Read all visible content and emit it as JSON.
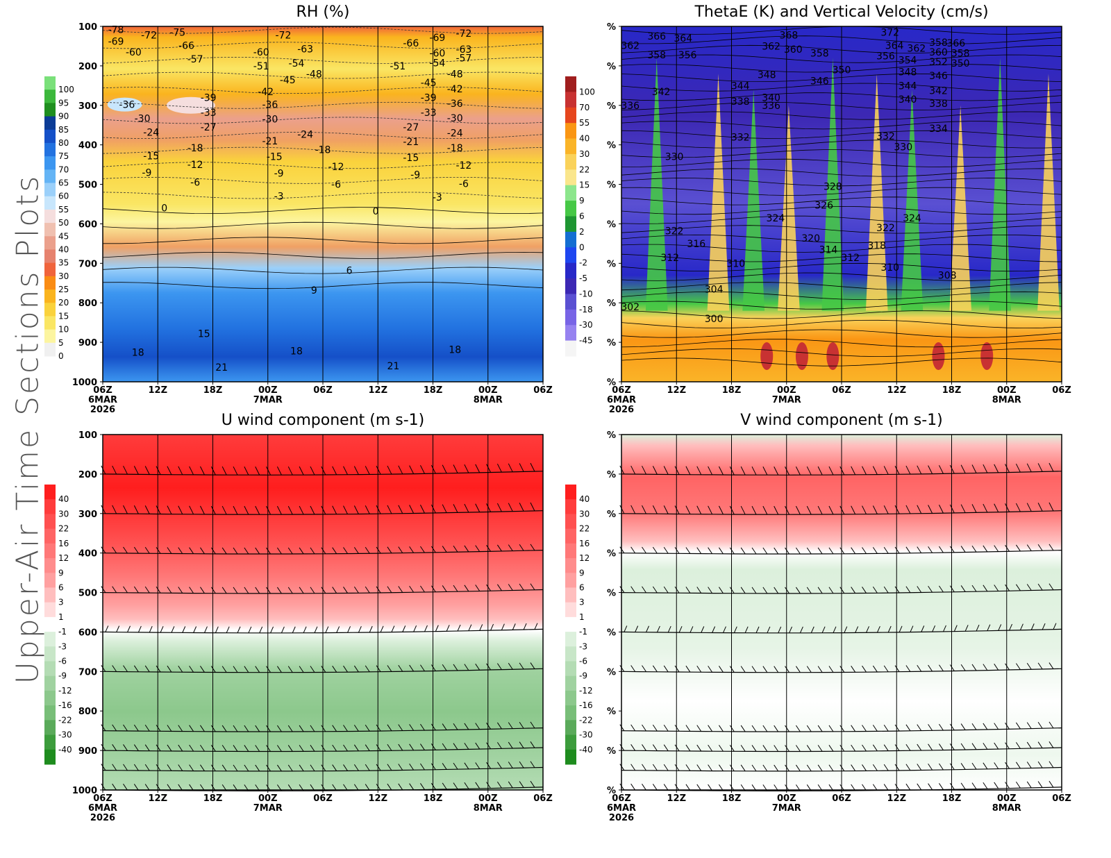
{
  "side_title": "Upper-Air Time Sections Plots",
  "x_ticks": [
    "06Z",
    "12Z",
    "18Z",
    "00Z",
    "06Z",
    "12Z",
    "18Z",
    "00Z",
    "06Z"
  ],
  "x_sub": {
    "0": [
      "6MAR",
      "2026"
    ],
    "3": [
      "7MAR"
    ],
    "7": [
      "8MAR"
    ]
  },
  "chart_data": [
    {
      "id": "rh",
      "type": "heatmap",
      "title": "RH (%)",
      "y_ticks": [
        "100",
        "200",
        "300",
        "400",
        "500",
        "600",
        "700",
        "800",
        "900",
        "1000"
      ],
      "ylim": [
        100,
        1000
      ],
      "colorbar": {
        "labels": [
          "100",
          "95",
          "90",
          "85",
          "80",
          "75",
          "70",
          "65",
          "60",
          "55",
          "50",
          "45",
          "40",
          "35",
          "30",
          "25",
          "20",
          "15",
          "10",
          "5",
          "0"
        ],
        "colors": [
          "#7ae07a",
          "#3cb83c",
          "#1f8f1f",
          "#0c3c96",
          "#1550c8",
          "#2272e0",
          "#3c96f0",
          "#64b4f5",
          "#9bd0fa",
          "#c8e6fc",
          "#f5dede",
          "#f0c0b0",
          "#eba08c",
          "#e6826e",
          "#f0643c",
          "#fa8c14",
          "#fab41e",
          "#fad23c",
          "#fae664",
          "#fcf5a0",
          "#f0f0f0"
        ]
      },
      "contour_labels": [
        {
          "t": "-78",
          "x": 0.03,
          "p": 108
        },
        {
          "t": "-69",
          "x": 0.03,
          "p": 138
        },
        {
          "t": "-72",
          "x": 0.105,
          "p": 122
        },
        {
          "t": "-75",
          "x": 0.17,
          "p": 115
        },
        {
          "t": "-60",
          "x": 0.07,
          "p": 165
        },
        {
          "t": "-66",
          "x": 0.19,
          "p": 148
        },
        {
          "t": "-57",
          "x": 0.21,
          "p": 183
        },
        {
          "t": "-72",
          "x": 0.41,
          "p": 122
        },
        {
          "t": "-63",
          "x": 0.46,
          "p": 157
        },
        {
          "t": "-60",
          "x": 0.36,
          "p": 165
        },
        {
          "t": "-54",
          "x": 0.44,
          "p": 193
        },
        {
          "t": "-51",
          "x": 0.36,
          "p": 200
        },
        {
          "t": "-48",
          "x": 0.48,
          "p": 220
        },
        {
          "t": "-45",
          "x": 0.42,
          "p": 235
        },
        {
          "t": "-42",
          "x": 0.37,
          "p": 265
        },
        {
          "t": "-39",
          "x": 0.24,
          "p": 280
        },
        {
          "t": "-36",
          "x": 0.055,
          "p": 298
        },
        {
          "t": "-36",
          "x": 0.38,
          "p": 298
        },
        {
          "t": "-33",
          "x": 0.24,
          "p": 318
        },
        {
          "t": "-30",
          "x": 0.09,
          "p": 333
        },
        {
          "t": "-30",
          "x": 0.38,
          "p": 335
        },
        {
          "t": "-27",
          "x": 0.24,
          "p": 355
        },
        {
          "t": "-24",
          "x": 0.11,
          "p": 368
        },
        {
          "t": "-24",
          "x": 0.46,
          "p": 373
        },
        {
          "t": "-21",
          "x": 0.38,
          "p": 390
        },
        {
          "t": "-18",
          "x": 0.21,
          "p": 408
        },
        {
          "t": "-18",
          "x": 0.5,
          "p": 412
        },
        {
          "t": "-15",
          "x": 0.11,
          "p": 428
        },
        {
          "t": "-15",
          "x": 0.39,
          "p": 430
        },
        {
          "t": "-12",
          "x": 0.21,
          "p": 450
        },
        {
          "t": "-12",
          "x": 0.53,
          "p": 455
        },
        {
          "t": "-9",
          "x": 0.1,
          "p": 470
        },
        {
          "t": "-9",
          "x": 0.4,
          "p": 472
        },
        {
          "t": "-6",
          "x": 0.21,
          "p": 495
        },
        {
          "t": "-6",
          "x": 0.53,
          "p": 500
        },
        {
          "t": "-3",
          "x": 0.4,
          "p": 530
        },
        {
          "t": "0",
          "x": 0.14,
          "p": 560
        },
        {
          "t": "0",
          "x": 0.62,
          "p": 568
        },
        {
          "t": "-66",
          "x": 0.7,
          "p": 142
        },
        {
          "t": "-69",
          "x": 0.76,
          "p": 128
        },
        {
          "t": "-72",
          "x": 0.82,
          "p": 118
        },
        {
          "t": "-60",
          "x": 0.76,
          "p": 168
        },
        {
          "t": "-63",
          "x": 0.82,
          "p": 158
        },
        {
          "t": "-57",
          "x": 0.82,
          "p": 180
        },
        {
          "t": "-54",
          "x": 0.76,
          "p": 192
        },
        {
          "t": "-51",
          "x": 0.67,
          "p": 200
        },
        {
          "t": "-48",
          "x": 0.8,
          "p": 220
        },
        {
          "t": "-45",
          "x": 0.74,
          "p": 242
        },
        {
          "t": "-42",
          "x": 0.8,
          "p": 258
        },
        {
          "t": "-39",
          "x": 0.74,
          "p": 280
        },
        {
          "t": "-36",
          "x": 0.8,
          "p": 295
        },
        {
          "t": "-33",
          "x": 0.74,
          "p": 318
        },
        {
          "t": "-30",
          "x": 0.8,
          "p": 332
        },
        {
          "t": "-27",
          "x": 0.7,
          "p": 355
        },
        {
          "t": "-24",
          "x": 0.8,
          "p": 370
        },
        {
          "t": "-21",
          "x": 0.7,
          "p": 392
        },
        {
          "t": "-18",
          "x": 0.8,
          "p": 408
        },
        {
          "t": "-15",
          "x": 0.7,
          "p": 432
        },
        {
          "t": "-12",
          "x": 0.82,
          "p": 452
        },
        {
          "t": "-9",
          "x": 0.71,
          "p": 475
        },
        {
          "t": "-6",
          "x": 0.82,
          "p": 498
        },
        {
          "t": "-3",
          "x": 0.76,
          "p": 532
        },
        {
          "t": "6",
          "x": 0.56,
          "p": 718
        },
        {
          "t": "9",
          "x": 0.48,
          "p": 768
        },
        {
          "t": "15",
          "x": 0.23,
          "p": 878
        },
        {
          "t": "18",
          "x": 0.08,
          "p": 925
        },
        {
          "t": "18",
          "x": 0.44,
          "p": 922
        },
        {
          "t": "18",
          "x": 0.8,
          "p": 918
        },
        {
          "t": "21",
          "x": 0.27,
          "p": 963
        },
        {
          "t": "21",
          "x": 0.66,
          "p": 960
        }
      ]
    },
    {
      "id": "thetae",
      "type": "heatmap",
      "title": "ThetaE (K) and Vertical Velocity (cm/s)",
      "y_ticks": [
        "%",
        "%",
        "%",
        "%",
        "%",
        "%",
        "%",
        "%",
        "%",
        "%"
      ],
      "ylim": [
        100,
        1000
      ],
      "colorbar": {
        "labels": [
          "100",
          "70",
          "55",
          "40",
          "30",
          "22",
          "15",
          "9",
          "6",
          "2",
          "0",
          "-2",
          "-5",
          "-10",
          "-18",
          "-30",
          "-45"
        ],
        "colors": [
          "#a01e1e",
          "#c83232",
          "#e6461e",
          "#fa9614",
          "#fab428",
          "#fad25a",
          "#fae68c",
          "#8ce68c",
          "#46c846",
          "#1e9632",
          "#146ed2",
          "#1e46f0",
          "#2828c8",
          "#3c28b4",
          "#5a50d2",
          "#7864e6",
          "#9682f0",
          "#f5f5f5"
        ]
      },
      "contour_labels": [
        {
          "t": "366",
          "x": 0.08,
          "p": 125
        },
        {
          "t": "364",
          "x": 0.14,
          "p": 130
        },
        {
          "t": "362",
          "x": 0.02,
          "p": 148
        },
        {
          "t": "358",
          "x": 0.08,
          "p": 172
        },
        {
          "t": "356",
          "x": 0.15,
          "p": 172
        },
        {
          "t": "342",
          "x": 0.09,
          "p": 265
        },
        {
          "t": "336",
          "x": 0.02,
          "p": 300
        },
        {
          "t": "330",
          "x": 0.12,
          "p": 430
        },
        {
          "t": "322",
          "x": 0.12,
          "p": 618
        },
        {
          "t": "316",
          "x": 0.17,
          "p": 650
        },
        {
          "t": "312",
          "x": 0.11,
          "p": 685
        },
        {
          "t": "302",
          "x": 0.02,
          "p": 810
        },
        {
          "t": "304",
          "x": 0.21,
          "p": 765
        },
        {
          "t": "300",
          "x": 0.21,
          "p": 840
        },
        {
          "t": "310",
          "x": 0.26,
          "p": 700
        },
        {
          "t": "368",
          "x": 0.38,
          "p": 122
        },
        {
          "t": "362",
          "x": 0.34,
          "p": 150
        },
        {
          "t": "360",
          "x": 0.39,
          "p": 158
        },
        {
          "t": "358",
          "x": 0.45,
          "p": 168
        },
        {
          "t": "350",
          "x": 0.5,
          "p": 210
        },
        {
          "t": "348",
          "x": 0.33,
          "p": 222
        },
        {
          "t": "346",
          "x": 0.45,
          "p": 238
        },
        {
          "t": "344",
          "x": 0.27,
          "p": 250
        },
        {
          "t": "340",
          "x": 0.34,
          "p": 280
        },
        {
          "t": "338",
          "x": 0.27,
          "p": 290
        },
        {
          "t": "336",
          "x": 0.34,
          "p": 300
        },
        {
          "t": "332",
          "x": 0.27,
          "p": 380
        },
        {
          "t": "328",
          "x": 0.48,
          "p": 505
        },
        {
          "t": "326",
          "x": 0.46,
          "p": 553
        },
        {
          "t": "324",
          "x": 0.35,
          "p": 585
        },
        {
          "t": "320",
          "x": 0.43,
          "p": 636
        },
        {
          "t": "314",
          "x": 0.47,
          "p": 665
        },
        {
          "t": "312",
          "x": 0.52,
          "p": 685
        },
        {
          "t": "372",
          "x": 0.61,
          "p": 115
        },
        {
          "t": "364",
          "x": 0.62,
          "p": 148
        },
        {
          "t": "362",
          "x": 0.67,
          "p": 155
        },
        {
          "t": "358",
          "x": 0.72,
          "p": 140
        },
        {
          "t": "356",
          "x": 0.6,
          "p": 175
        },
        {
          "t": "354",
          "x": 0.65,
          "p": 185
        },
        {
          "t": "352",
          "x": 0.72,
          "p": 190
        },
        {
          "t": "350",
          "x": 0.77,
          "p": 193
        },
        {
          "t": "366",
          "x": 0.76,
          "p": 142
        },
        {
          "t": "360",
          "x": 0.72,
          "p": 165
        },
        {
          "t": "358",
          "x": 0.77,
          "p": 168
        },
        {
          "t": "348",
          "x": 0.65,
          "p": 215
        },
        {
          "t": "346",
          "x": 0.72,
          "p": 225
        },
        {
          "t": "344",
          "x": 0.65,
          "p": 250
        },
        {
          "t": "342",
          "x": 0.72,
          "p": 263
        },
        {
          "t": "340",
          "x": 0.65,
          "p": 285
        },
        {
          "t": "338",
          "x": 0.72,
          "p": 295
        },
        {
          "t": "334",
          "x": 0.72,
          "p": 358
        },
        {
          "t": "332",
          "x": 0.6,
          "p": 378
        },
        {
          "t": "330",
          "x": 0.64,
          "p": 405
        },
        {
          "t": "324",
          "x": 0.66,
          "p": 585
        },
        {
          "t": "322",
          "x": 0.6,
          "p": 610
        },
        {
          "t": "318",
          "x": 0.58,
          "p": 655
        },
        {
          "t": "310",
          "x": 0.61,
          "p": 710
        },
        {
          "t": "308",
          "x": 0.74,
          "p": 730
        }
      ]
    },
    {
      "id": "uwind",
      "type": "heatmap",
      "title": "U wind component (m s-1)",
      "y_ticks": [
        "100",
        "200",
        "300",
        "400",
        "500",
        "600",
        "700",
        "800",
        "900",
        "1000"
      ],
      "ylim": [
        100,
        1000
      ],
      "colorbar": {
        "labels": [
          "40",
          "30",
          "22",
          "16",
          "12",
          "9",
          "6",
          "3",
          "1",
          "-1",
          "-3",
          "-6",
          "-9",
          "-12",
          "-16",
          "-22",
          "-30",
          "-40"
        ],
        "colors": [
          "#ff1e1e",
          "#ff3c3c",
          "#ff5050",
          "#ff6464",
          "#ff7878",
          "#ff8c8c",
          "#ffa0a0",
          "#ffbebe",
          "#ffdcdc",
          "#ffffff",
          "#dcf0dc",
          "#c8e6c8",
          "#b4dcb4",
          "#a0d2a0",
          "#8cc88c",
          "#78be78",
          "#5aaa5a",
          "#3c9c3c",
          "#1e8c1e"
        ]
      }
    },
    {
      "id": "vwind",
      "type": "heatmap",
      "title": "V wind component (m s-1)",
      "y_ticks": [
        "%",
        "%",
        "%",
        "%",
        "%",
        "%",
        "%",
        "%",
        "%",
        "%"
      ],
      "ylim": [
        100,
        1000
      ],
      "colorbar": {
        "labels": [
          "40",
          "30",
          "22",
          "16",
          "12",
          "9",
          "6",
          "3",
          "1",
          "-1",
          "-3",
          "-6",
          "-9",
          "-12",
          "-16",
          "-22",
          "-30",
          "-40"
        ],
        "colors": [
          "#ff1e1e",
          "#ff3c3c",
          "#ff5050",
          "#ff6464",
          "#ff7878",
          "#ff8c8c",
          "#ffa0a0",
          "#ffbebe",
          "#ffdcdc",
          "#ffffff",
          "#dcf0dc",
          "#c8e6c8",
          "#b4dcb4",
          "#a0d2a0",
          "#8cc88c",
          "#78be78",
          "#5aaa5a",
          "#3c9c3c",
          "#1e8c1e"
        ]
      }
    }
  ]
}
